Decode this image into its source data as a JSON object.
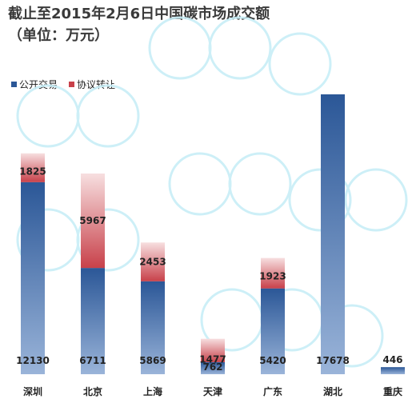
{
  "title": {
    "line1": "截止至2015年2月6日中国碳市场成交额",
    "line2": "（单位：万元）"
  },
  "legend": {
    "public": "公开交易",
    "agreement": "协议转让"
  },
  "colors": {
    "public_top": "#2b5797",
    "public_bottom": "#9ab4d9",
    "agreement_top": "#f7dfe0",
    "agreement_bottom": "#c8414a",
    "text": "#222222"
  },
  "chart_data": {
    "type": "bar",
    "stacked": true,
    "categories": [
      "深圳",
      "北京",
      "上海",
      "天津",
      "广东",
      "湖北",
      "重庆"
    ],
    "series": [
      {
        "name": "公开交易",
        "values": [
          12130,
          6711,
          5869,
          762,
          5420,
          17678,
          446
        ]
      },
      {
        "name": "协议转让",
        "values": [
          1825,
          5967,
          2453,
          1477,
          1923,
          0,
          0
        ]
      }
    ],
    "labels": {
      "public": [
        "12130",
        "6711",
        "5869",
        "762",
        "5420",
        "17678",
        "446"
      ],
      "agreement": [
        "1825",
        "5967",
        "2453",
        "1477",
        "1923",
        "",
        ""
      ]
    },
    "title": "截止至2015年2月6日中国碳市场成交额",
    "xlabel": "",
    "ylabel": "",
    "ylim": [
      0,
      17678
    ],
    "grid": false,
    "legend_position": "top-left"
  }
}
